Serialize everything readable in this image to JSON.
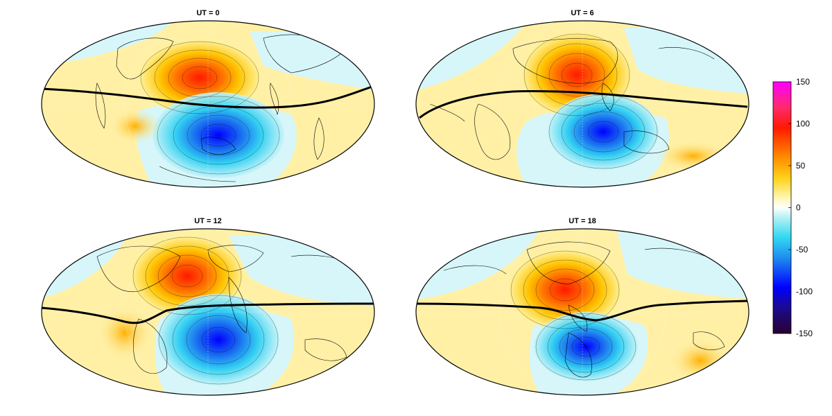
{
  "panels": [
    {
      "title": "UT = 0"
    },
    {
      "title": "UT = 6"
    },
    {
      "title": "UT = 12"
    },
    {
      "title": "UT = 18"
    }
  ],
  "colorbar": {
    "ticks": [
      "150",
      "100",
      "50",
      "0",
      "-50",
      "-100",
      "-150"
    ],
    "range": [
      -150,
      150
    ],
    "stops": [
      {
        "v": -150,
        "c": "#2a0030"
      },
      {
        "v": -120,
        "c": "#1b0a8c"
      },
      {
        "v": -95,
        "c": "#0000ff"
      },
      {
        "v": -60,
        "c": "#1e8cf0"
      },
      {
        "v": -35,
        "c": "#33d9f2"
      },
      {
        "v": -12,
        "c": "#b4f0f5"
      },
      {
        "v": 0,
        "c": "#ffffff"
      },
      {
        "v": 12,
        "c": "#fff7b0"
      },
      {
        "v": 35,
        "c": "#ffd21a"
      },
      {
        "v": 60,
        "c": "#ff8c00"
      },
      {
        "v": 95,
        "c": "#ff1a00"
      },
      {
        "v": 120,
        "c": "#ff2a6e"
      },
      {
        "v": 150,
        "c": "#ff00ff"
      }
    ]
  },
  "colors": {
    "positive_fill": "#fff0a6",
    "negative_fill": "#d6f6fa",
    "equator_line": "#000000",
    "coastline": "#000000"
  }
}
